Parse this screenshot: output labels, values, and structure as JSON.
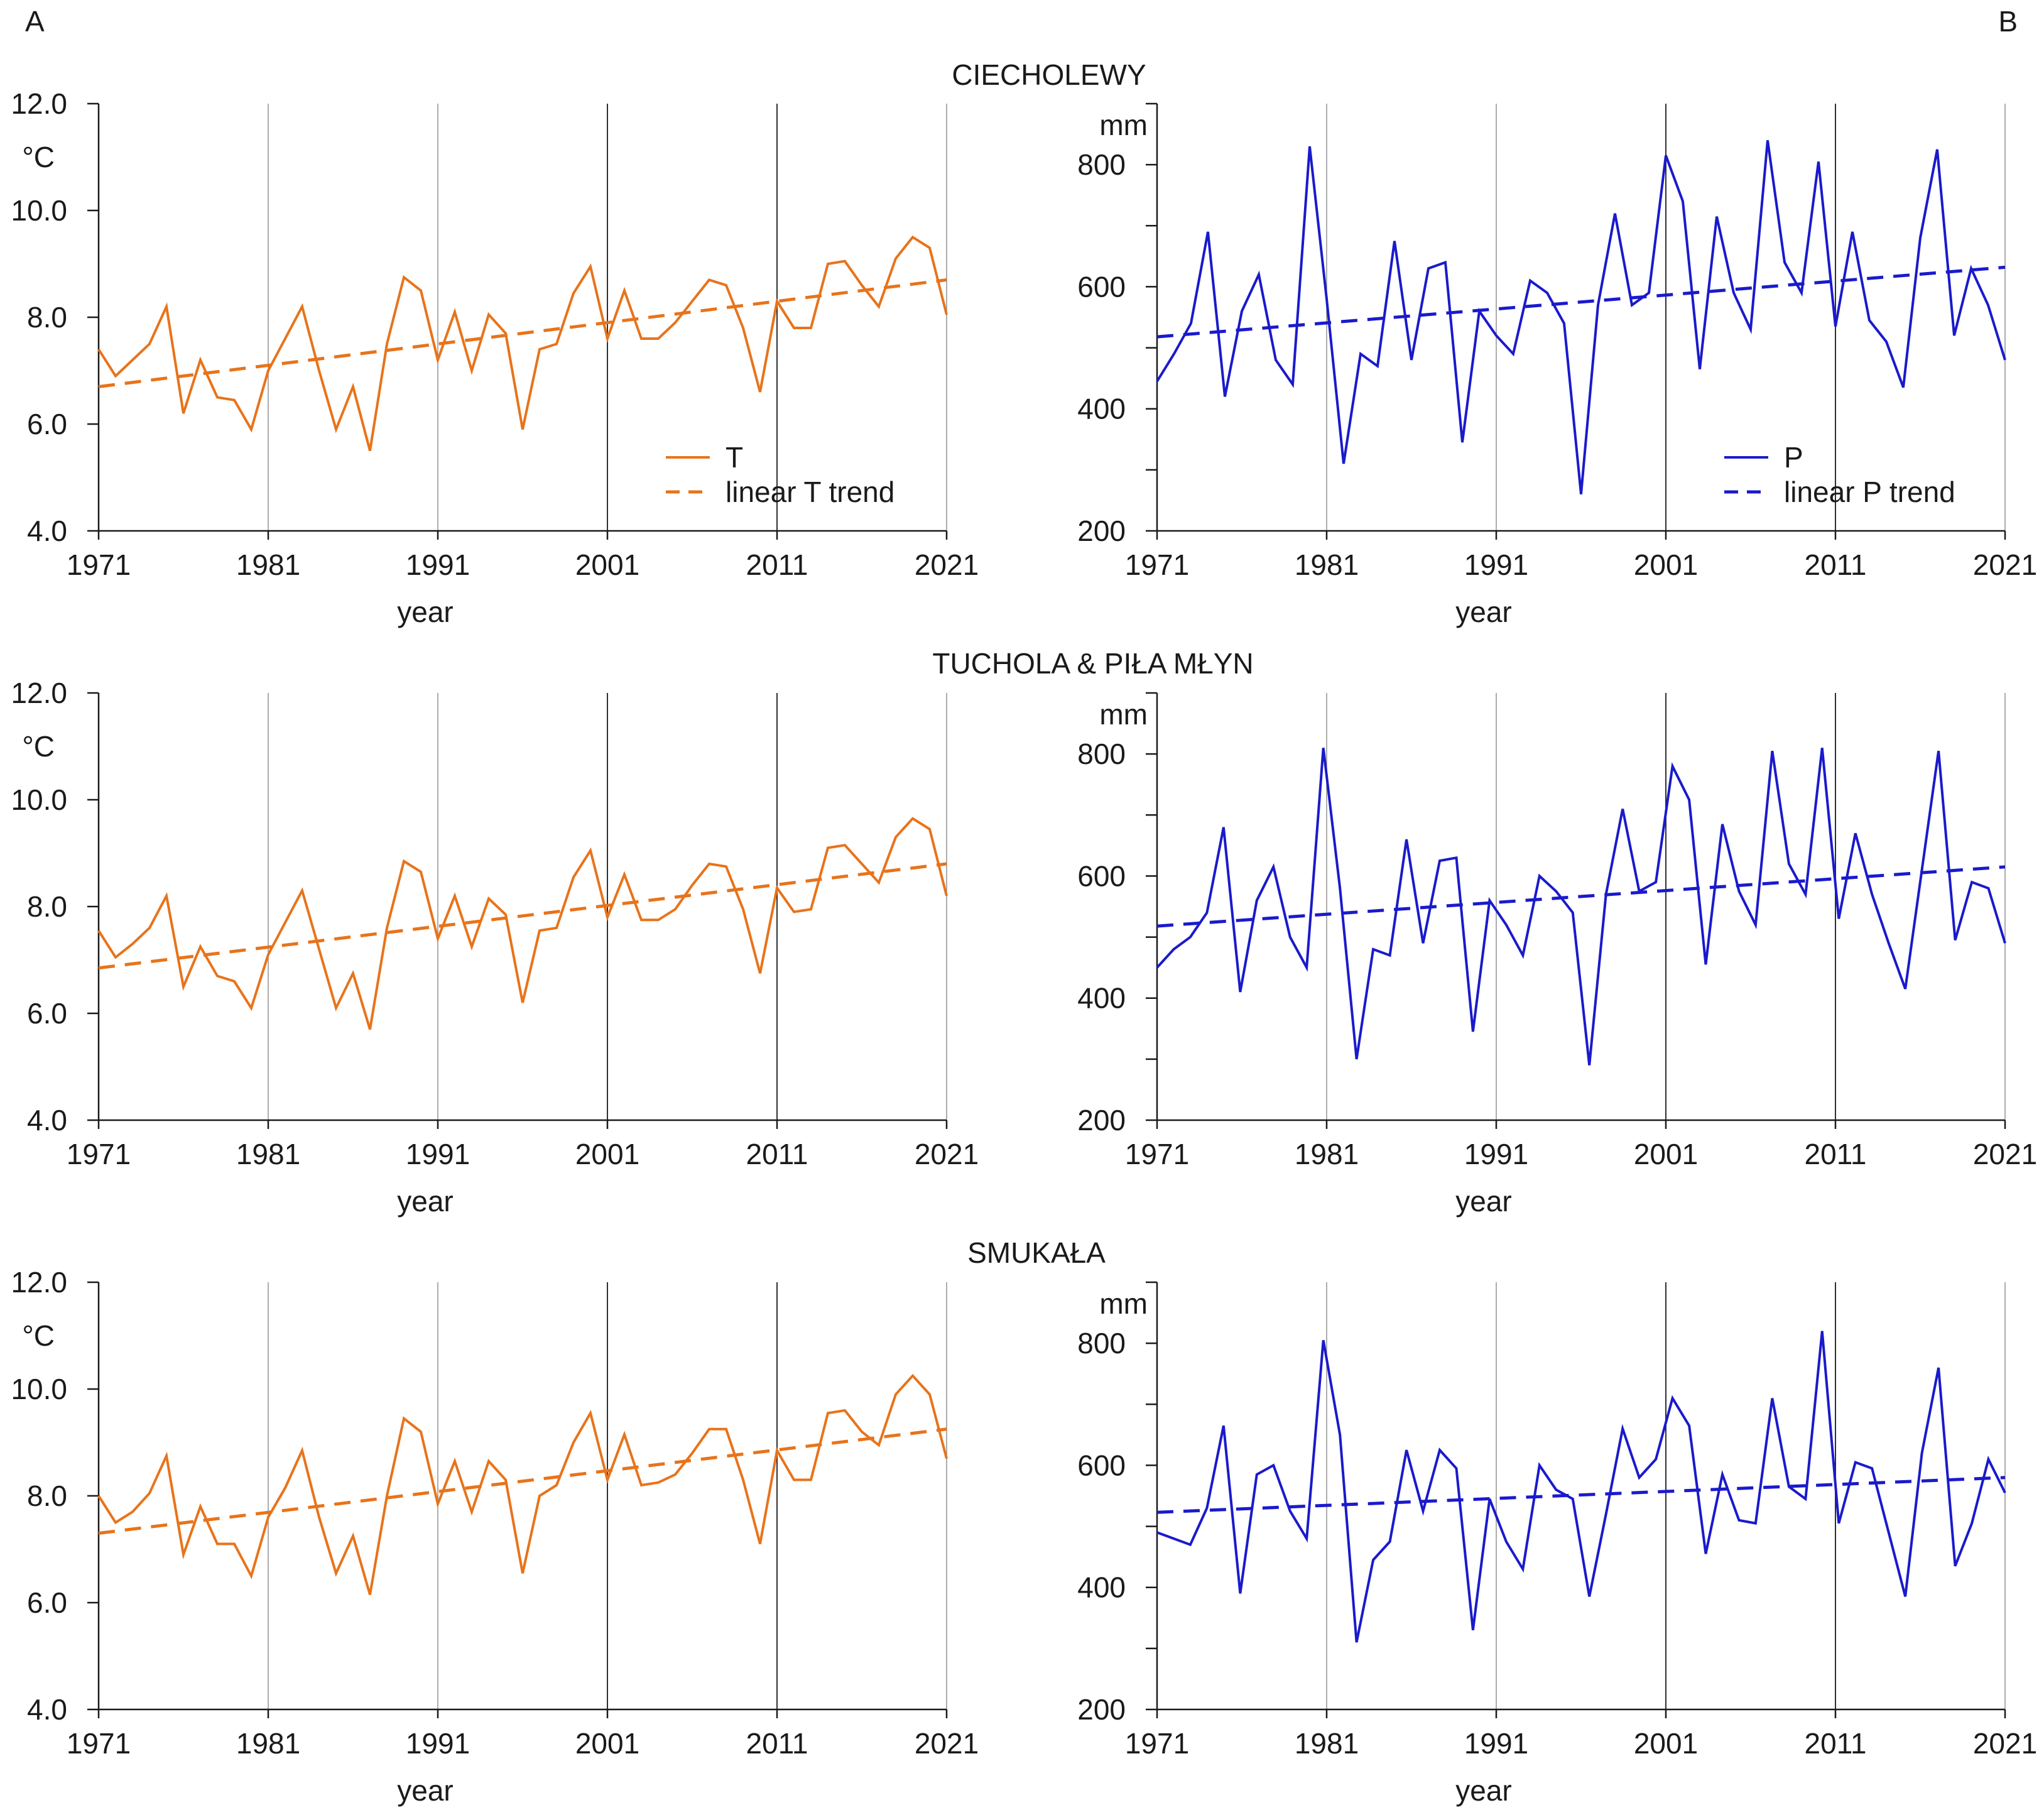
{
  "panel_letters": {
    "left": "A",
    "right": "B"
  },
  "titles": [
    "CIECHOLEWY",
    "TUCHOLA & PIŁA MŁYN",
    "SMUKAŁA"
  ],
  "colors": {
    "temperature": "#e8731a",
    "precipitation": "#1a1acc",
    "axis": "#1a1a1a"
  },
  "chart_data": [
    {
      "type": "line",
      "station": "CIECHOLEWY",
      "panel": "A",
      "title": "CIECHOLEWY",
      "xlabel": "year",
      "ylabel": "°C",
      "xlim": [
        1971,
        2021
      ],
      "ylim": [
        4.0,
        12.0
      ],
      "xticks": [
        "1971",
        "1981",
        "1991",
        "2001",
        "2011",
        "2021"
      ],
      "yticks": [
        "4.0",
        "6.0",
        "8.0",
        "10.0",
        "12.0"
      ],
      "legend": {
        "placement": "bottom-right",
        "series": "T",
        "trend": "linear T trend"
      },
      "series": [
        {
          "name": "T",
          "x_start": 1971,
          "values": [
            7.4,
            6.9,
            7.2,
            7.5,
            8.2,
            6.2,
            7.2,
            6.5,
            6.45,
            5.9,
            7.0,
            7.6,
            8.2,
            7.0,
            5.9,
            6.7,
            5.5,
            7.5,
            8.75,
            8.5,
            7.2,
            8.1,
            7.0,
            8.05,
            7.7,
            5.9,
            7.4,
            7.5,
            8.45,
            8.95,
            7.6,
            8.5,
            7.6,
            7.6,
            7.9,
            8.3,
            8.7,
            8.6,
            7.8,
            6.6,
            8.3,
            7.8,
            7.8,
            9.0,
            9.05,
            8.6,
            8.2,
            9.1,
            9.5,
            9.3,
            8.05
          ]
        }
      ],
      "trend": {
        "name": "linear T trend",
        "x": [
          1971,
          2021
        ],
        "values": [
          6.7,
          8.7
        ]
      }
    },
    {
      "type": "line",
      "station": "CIECHOLEWY",
      "panel": "B",
      "title": "CIECHOLEWY",
      "xlabel": "year",
      "ylabel": "mm",
      "xlim": [
        1971,
        2021
      ],
      "ylim": [
        200,
        900
      ],
      "xticks": [
        "1971",
        "1981",
        "1991",
        "2001",
        "2011",
        "2021"
      ],
      "yticks": [
        "200",
        "400",
        "600",
        "800"
      ],
      "legend": {
        "placement": "bottom-right",
        "series": "P",
        "trend": "linear P  trend"
      },
      "series": [
        {
          "name": "P",
          "x_start": 1971,
          "values": [
            445,
            490,
            540,
            690,
            420,
            560,
            620,
            480,
            440,
            830,
            580,
            310,
            490,
            470,
            675,
            480,
            630,
            640,
            345,
            560,
            520,
            490,
            610,
            590,
            540,
            260,
            570,
            720,
            570,
            590,
            815,
            740,
            465,
            715,
            590,
            530,
            840,
            640,
            590,
            805,
            535,
            690,
            545,
            510,
            435,
            680,
            825,
            520,
            630,
            570,
            480
          ]
        }
      ],
      "trend": {
        "name": "linear P  trend",
        "x": [
          1971,
          2021
        ],
        "values": [
          518,
          632
        ]
      }
    },
    {
      "type": "line",
      "station": "TUCHOLA & PIŁA MŁYN",
      "panel": "A",
      "title": "TUCHOLA & PIŁA MŁYN",
      "xlabel": "year",
      "ylabel": "°C",
      "xlim": [
        1971,
        2021
      ],
      "ylim": [
        4.0,
        12.0
      ],
      "xticks": [
        "1971",
        "1981",
        "1991",
        "2001",
        "2011",
        "2021"
      ],
      "yticks": [
        "4.0",
        "6.0",
        "8.0",
        "10.0",
        "12.0"
      ],
      "legend": null,
      "series": [
        {
          "name": "T",
          "x_start": 1971,
          "values": [
            7.55,
            7.05,
            7.3,
            7.6,
            8.2,
            6.5,
            7.25,
            6.7,
            6.6,
            6.1,
            7.1,
            7.7,
            8.3,
            7.2,
            6.1,
            6.75,
            5.7,
            7.6,
            8.85,
            8.65,
            7.4,
            8.2,
            7.25,
            8.15,
            7.85,
            6.2,
            7.55,
            7.6,
            8.55,
            9.05,
            7.8,
            8.6,
            7.75,
            7.75,
            7.95,
            8.4,
            8.8,
            8.75,
            7.95,
            6.75,
            8.35,
            7.9,
            7.95,
            9.1,
            9.15,
            8.8,
            8.45,
            9.3,
            9.65,
            9.45,
            8.2
          ]
        }
      ],
      "trend": {
        "name": "linear T trend",
        "x": [
          1971,
          2021
        ],
        "values": [
          6.85,
          8.8
        ]
      }
    },
    {
      "type": "line",
      "station": "TUCHOLA & PIŁA MŁYN",
      "panel": "B",
      "title": "TUCHOLA & PIŁA MŁYN",
      "xlabel": "year",
      "ylabel": "mm",
      "xlim": [
        1971,
        2021
      ],
      "ylim": [
        200,
        900
      ],
      "xticks": [
        "1971",
        "1981",
        "1991",
        "2001",
        "2011",
        "2021"
      ],
      "yticks": [
        "200",
        "400",
        "600",
        "800"
      ],
      "legend": null,
      "series": [
        {
          "name": "P",
          "x_start": 1971,
          "values": [
            450,
            480,
            500,
            540,
            680,
            410,
            560,
            615,
            500,
            450,
            810,
            580,
            300,
            480,
            470,
            660,
            490,
            625,
            630,
            345,
            560,
            520,
            470,
            600,
            575,
            540,
            290,
            570,
            710,
            575,
            590,
            780,
            725,
            455,
            685,
            575,
            520,
            805,
            620,
            570,
            810,
            530,
            670,
            570,
            490,
            415,
            610,
            805,
            495,
            590,
            580,
            490
          ]
        }
      ],
      "trend": {
        "name": "linear P  trend",
        "x": [
          1971,
          2021
        ],
        "values": [
          518,
          615
        ]
      }
    },
    {
      "type": "line",
      "station": "SMUKAŁA",
      "panel": "A",
      "title": "SMUKAŁA",
      "xlabel": "year",
      "ylabel": "°C",
      "xlim": [
        1971,
        2021
      ],
      "ylim": [
        4.0,
        12.0
      ],
      "xticks": [
        "1971",
        "1981",
        "1991",
        "2001",
        "2011",
        "2021"
      ],
      "yticks": [
        "4.0",
        "6.0",
        "8.0",
        "10.0",
        "12.0"
      ],
      "legend": null,
      "series": [
        {
          "name": "T",
          "x_start": 1971,
          "values": [
            8.0,
            7.5,
            7.7,
            8.05,
            8.75,
            6.9,
            7.8,
            7.1,
            7.1,
            6.5,
            7.6,
            8.15,
            8.85,
            7.6,
            6.55,
            7.25,
            6.15,
            8.0,
            9.45,
            9.2,
            7.85,
            8.65,
            7.7,
            8.65,
            8.3,
            6.55,
            8.0,
            8.2,
            9.0,
            9.55,
            8.3,
            9.15,
            8.2,
            8.25,
            8.4,
            8.8,
            9.25,
            9.25,
            8.3,
            7.1,
            8.85,
            8.3,
            8.3,
            9.55,
            9.6,
            9.2,
            8.95,
            9.9,
            10.25,
            9.9,
            8.7
          ]
        }
      ],
      "trend": {
        "name": "linear T trend",
        "x": [
          1971,
          2021
        ],
        "values": [
          7.3,
          9.25
        ]
      }
    },
    {
      "type": "line",
      "station": "SMUKAŁA",
      "panel": "B",
      "title": "SMUKAŁA",
      "xlabel": "year",
      "ylabel": "mm",
      "xlim": [
        1971,
        2021
      ],
      "ylim": [
        200,
        900
      ],
      "xticks": [
        "1971",
        "1981",
        "1991",
        "2001",
        "2011",
        "2021"
      ],
      "yticks": [
        "200",
        "400",
        "600",
        "800"
      ],
      "legend": null,
      "series": [
        {
          "name": "P",
          "x_start": 1971,
          "values": [
            490,
            480,
            470,
            530,
            665,
            390,
            585,
            600,
            525,
            480,
            805,
            650,
            310,
            445,
            475,
            625,
            525,
            625,
            595,
            330,
            545,
            475,
            430,
            600,
            560,
            545,
            385,
            520,
            660,
            580,
            610,
            710,
            665,
            455,
            585,
            510,
            505,
            710,
            565,
            545,
            820,
            505,
            605,
            595,
            490,
            385,
            620,
            760,
            435,
            505,
            610,
            555
          ]
        }
      ],
      "trend": {
        "name": "linear P  trend",
        "x": [
          1971,
          2021
        ],
        "values": [
          523,
          580
        ]
      }
    }
  ]
}
